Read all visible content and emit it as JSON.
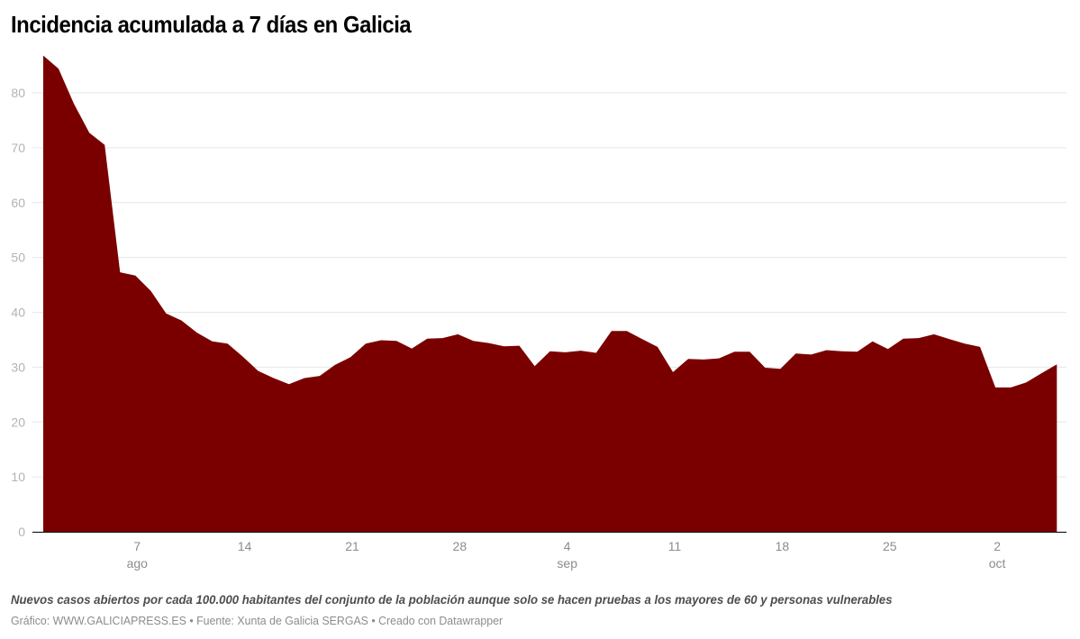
{
  "header": {
    "title": "Incidencia acumulada a 7 días en Galicia"
  },
  "footer": {
    "note": "Nuevos casos abiertos por cada 100.000 habitantes del conjunto de la población aunque solo se hacen pruebas a los mayores de 60 y personas vulnerables",
    "source": "Gráfico: WWW.GALICIAPRESS.ES • Fuente: Xunta de Galicia SERGAS • Creado con Datawrapper"
  },
  "colors": {
    "area": "#7a0000",
    "grid": "#e6e6e6",
    "axis": "#000000"
  },
  "chart_data": {
    "type": "area",
    "title": "Incidencia acumulada a 7 días en Galicia",
    "subtitle": "",
    "xlabel": "",
    "ylabel": "",
    "ylim": [
      0,
      87
    ],
    "yticks": [
      0,
      10,
      20,
      30,
      40,
      50,
      60,
      70,
      80
    ],
    "grid": true,
    "legend": null,
    "x_start": "2020-08-01",
    "x_end": "2020-10-06",
    "xticks": [
      {
        "day": 6,
        "label": "7",
        "month": "ago"
      },
      {
        "day": 13,
        "label": "14",
        "month": ""
      },
      {
        "day": 20,
        "label": "21",
        "month": ""
      },
      {
        "day": 27,
        "label": "28",
        "month": ""
      },
      {
        "day": 34,
        "label": "4",
        "month": "sep"
      },
      {
        "day": 41,
        "label": "11",
        "month": ""
      },
      {
        "day": 48,
        "label": "18",
        "month": ""
      },
      {
        "day": 55,
        "label": "25",
        "month": ""
      },
      {
        "day": 62,
        "label": "2",
        "month": "oct"
      }
    ],
    "x": [
      "ago 1",
      "ago 2",
      "ago 3",
      "ago 4",
      "ago 5",
      "ago 6",
      "ago 7",
      "ago 8",
      "ago 9",
      "ago 10",
      "ago 11",
      "ago 12",
      "ago 13",
      "ago 14",
      "ago 15",
      "ago 16",
      "ago 17",
      "ago 18",
      "ago 19",
      "ago 20",
      "ago 21",
      "ago 22",
      "ago 23",
      "ago 24",
      "ago 25",
      "ago 26",
      "ago 27",
      "ago 28",
      "ago 29",
      "ago 30",
      "ago 31",
      "sep 1",
      "sep 2",
      "sep 3",
      "sep 4",
      "sep 5",
      "sep 6",
      "sep 7",
      "sep 8",
      "sep 9",
      "sep 10",
      "sep 11",
      "sep 12",
      "sep 13",
      "sep 14",
      "sep 15",
      "sep 16",
      "sep 17",
      "sep 18",
      "sep 19",
      "sep 20",
      "sep 21",
      "sep 22",
      "sep 23",
      "sep 24",
      "sep 25",
      "sep 26",
      "sep 27",
      "sep 28",
      "sep 29",
      "sep 30",
      "oct 1",
      "oct 2",
      "oct 3",
      "oct 4",
      "oct 5",
      "oct 6"
    ],
    "values": [
      86.8,
      84.4,
      78.0,
      72.7,
      70.5,
      47.3,
      46.7,
      43.9,
      39.8,
      38.5,
      36.3,
      34.7,
      34.3,
      31.9,
      29.3,
      28.0,
      26.9,
      28.0,
      28.4,
      30.4,
      31.8,
      34.3,
      34.9,
      34.8,
      33.4,
      35.2,
      35.3,
      36.0,
      34.8,
      34.4,
      33.8,
      33.9,
      30.2,
      32.9,
      32.7,
      33.0,
      32.6,
      36.6,
      36.6,
      35.1,
      33.7,
      29.1,
      31.5,
      31.4,
      31.6,
      32.8,
      32.8,
      29.9,
      29.7,
      32.5,
      32.3,
      33.1,
      32.9,
      32.8,
      34.7,
      33.3,
      35.2,
      35.3,
      36.0,
      35.1,
      34.3,
      33.7,
      26.3,
      26.3,
      27.2,
      28.9,
      30.5
    ]
  }
}
